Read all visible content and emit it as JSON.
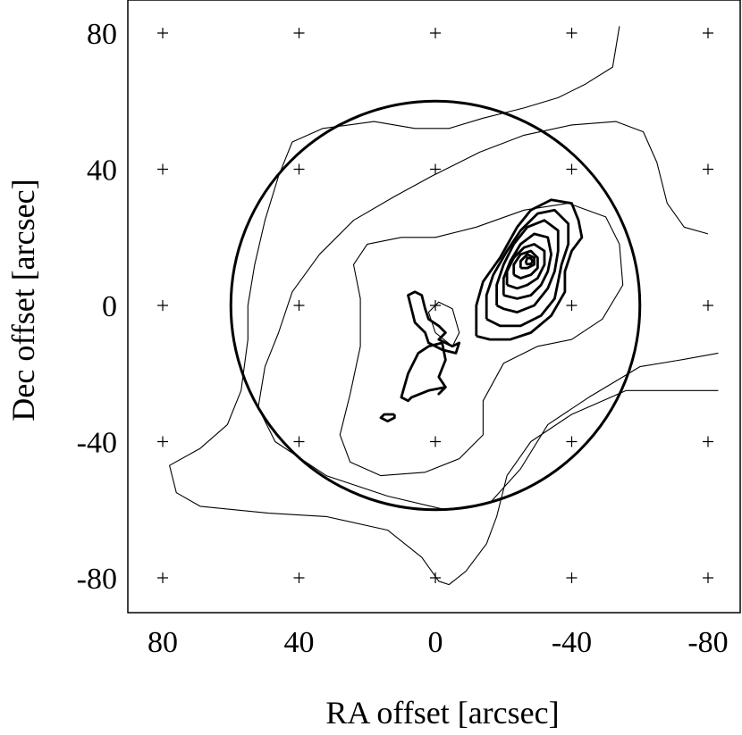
{
  "chart_data": {
    "type": "contour",
    "xlabel": "RA offset [arcsec]",
    "ylabel": "Dec offset [arcsec]",
    "xlim": [
      90,
      -90
    ],
    "ylim": [
      -90,
      90
    ],
    "x_reversed": true,
    "xticks": [
      80,
      40,
      0,
      -40,
      -80
    ],
    "yticks": [
      80,
      40,
      0,
      -40,
      -80
    ],
    "xtick_labels": [
      "80",
      "40",
      "0",
      "-40",
      "-80"
    ],
    "ytick_labels": [
      "80",
      "40",
      "0",
      "-40",
      "-80"
    ],
    "grid_markers": "plus marks at every tick intersection",
    "beam_circle": {
      "center": [
        0,
        0
      ],
      "radius": 60
    },
    "thin_contours": [
      {
        "name": "outer",
        "points": [
          [
            -54,
            82
          ],
          [
            -52,
            70
          ],
          [
            -44,
            65
          ],
          [
            -36,
            61
          ],
          [
            -26,
            58
          ],
          [
            -14,
            55
          ],
          [
            -4,
            52
          ],
          [
            6,
            52
          ],
          [
            18,
            54
          ],
          [
            33,
            52
          ],
          [
            42,
            48
          ],
          [
            46,
            38
          ],
          [
            50,
            25
          ],
          [
            53,
            12
          ],
          [
            55,
            0
          ],
          [
            55,
            -10
          ],
          [
            57,
            -25
          ],
          [
            61,
            -35
          ],
          [
            69,
            -42
          ],
          [
            78,
            -47
          ],
          [
            76,
            -55
          ],
          [
            69,
            -59
          ],
          [
            49,
            -61
          ],
          [
            32,
            -62
          ],
          [
            14,
            -66
          ],
          [
            4,
            -74
          ],
          [
            -1,
            -81
          ],
          [
            -4,
            -82
          ],
          [
            -9,
            -78
          ],
          [
            -15,
            -70
          ],
          [
            -18,
            -62
          ],
          [
            -21,
            -50
          ],
          [
            -28,
            -40
          ],
          [
            -40,
            -32
          ],
          [
            -56,
            -25
          ],
          [
            -83,
            -25
          ]
        ]
      },
      {
        "name": "middle",
        "points": [
          [
            -83,
            -14
          ],
          [
            -72,
            -16
          ],
          [
            -60,
            -18
          ],
          [
            -45,
            -27
          ],
          [
            -33,
            -35
          ],
          [
            -25,
            -48
          ],
          [
            -16,
            -58
          ],
          [
            -3,
            -60
          ],
          [
            14,
            -56
          ],
          [
            32,
            -50
          ],
          [
            47,
            -40
          ],
          [
            52,
            -30
          ],
          [
            50,
            -18
          ],
          [
            46,
            -8
          ],
          [
            42,
            4
          ],
          [
            34,
            15
          ],
          [
            24,
            25
          ],
          [
            12,
            32
          ],
          [
            1,
            38
          ],
          [
            -13,
            45
          ],
          [
            -26,
            50
          ],
          [
            -40,
            53
          ],
          [
            -53,
            54
          ],
          [
            -61,
            51
          ],
          [
            -65,
            42
          ],
          [
            -68,
            30
          ],
          [
            -73,
            23
          ],
          [
            -80,
            21
          ]
        ]
      },
      {
        "name": "inner",
        "points": [
          [
            -14,
            -38
          ],
          [
            -7,
            -45
          ],
          [
            3,
            -49
          ],
          [
            16,
            -50
          ],
          [
            25,
            -46
          ],
          [
            28,
            -38
          ],
          [
            25,
            -26
          ],
          [
            22,
            -12
          ],
          [
            22,
            2
          ],
          [
            24,
            12
          ],
          [
            20,
            18
          ],
          [
            10,
            20
          ],
          [
            0,
            20
          ],
          [
            -12,
            23
          ],
          [
            -26,
            28
          ],
          [
            -39,
            30
          ],
          [
            -50,
            26
          ],
          [
            -54,
            18
          ],
          [
            -55,
            6
          ],
          [
            -49,
            -4
          ],
          [
            -40,
            -10
          ],
          [
            -30,
            -12
          ],
          [
            -20,
            -17
          ],
          [
            -14,
            -28
          ],
          [
            -14,
            -38
          ]
        ]
      },
      {
        "name": "small-inner",
        "points": [
          [
            2,
            -2
          ],
          [
            0,
            -8
          ],
          [
            -5,
            -12
          ],
          [
            -7,
            -8
          ],
          [
            -5,
            -1
          ],
          [
            -1,
            1
          ],
          [
            2,
            -2
          ]
        ]
      }
    ],
    "thick_contours": [
      {
        "name": "peak-level-1",
        "points": [
          [
            -12,
            -9
          ],
          [
            -12,
            0
          ],
          [
            -14,
            7
          ],
          [
            -19,
            14
          ],
          [
            -24,
            23
          ],
          [
            -28,
            28
          ],
          [
            -34,
            31
          ],
          [
            -40,
            30
          ],
          [
            -42,
            25
          ],
          [
            -43,
            20
          ],
          [
            -40,
            16
          ],
          [
            -38,
            10
          ],
          [
            -38,
            4
          ],
          [
            -34,
            -3
          ],
          [
            -28,
            -8
          ],
          [
            -22,
            -10
          ],
          [
            -16,
            -10
          ],
          [
            -12,
            -9
          ]
        ]
      },
      {
        "name": "peak-level-2",
        "points": [
          [
            -15,
            -4
          ],
          [
            -15,
            3
          ],
          [
            -17,
            9
          ],
          [
            -21,
            16
          ],
          [
            -25,
            22
          ],
          [
            -30,
            27
          ],
          [
            -35,
            28
          ],
          [
            -39,
            24
          ],
          [
            -39,
            18
          ],
          [
            -37,
            12
          ],
          [
            -36,
            7
          ],
          [
            -35,
            2
          ],
          [
            -31,
            -3
          ],
          [
            -25,
            -6
          ],
          [
            -19,
            -6
          ],
          [
            -15,
            -4
          ]
        ]
      },
      {
        "name": "peak-level-3",
        "points": [
          [
            -18,
            0
          ],
          [
            -18,
            6
          ],
          [
            -20,
            12
          ],
          [
            -23,
            18
          ],
          [
            -27,
            23
          ],
          [
            -32,
            25
          ],
          [
            -36,
            22
          ],
          [
            -36,
            16
          ],
          [
            -35,
            10
          ],
          [
            -33,
            5
          ],
          [
            -29,
            0
          ],
          [
            -24,
            -2
          ],
          [
            -20,
            -1
          ],
          [
            -18,
            0
          ]
        ]
      },
      {
        "name": "peak-level-4",
        "points": [
          [
            -20,
            3
          ],
          [
            -20,
            8
          ],
          [
            -22,
            13
          ],
          [
            -25,
            18
          ],
          [
            -29,
            21
          ],
          [
            -33,
            20
          ],
          [
            -34,
            15
          ],
          [
            -33,
            10
          ],
          [
            -31,
            6
          ],
          [
            -28,
            3
          ],
          [
            -24,
            2
          ],
          [
            -20,
            3
          ]
        ]
      },
      {
        "name": "peak-level-5",
        "points": [
          [
            -21,
            6
          ],
          [
            -21,
            10
          ],
          [
            -23,
            14
          ],
          [
            -26,
            17
          ],
          [
            -29,
            18
          ],
          [
            -32,
            16
          ],
          [
            -32,
            12
          ],
          [
            -30,
            8
          ],
          [
            -27,
            6
          ],
          [
            -24,
            5
          ],
          [
            -21,
            6
          ]
        ]
      },
      {
        "name": "peak-level-6",
        "points": [
          [
            -23,
            9
          ],
          [
            -23,
            12
          ],
          [
            -25,
            15
          ],
          [
            -28,
            16
          ],
          [
            -30,
            14
          ],
          [
            -30,
            11
          ],
          [
            -28,
            9
          ],
          [
            -25,
            8
          ],
          [
            -23,
            9
          ]
        ]
      },
      {
        "name": "peak-level-7",
        "points": [
          [
            -25,
            11
          ],
          [
            -25,
            13
          ],
          [
            -27,
            15
          ],
          [
            -29,
            14
          ],
          [
            -29,
            12
          ],
          [
            -27,
            11
          ],
          [
            -25,
            11
          ]
        ]
      },
      {
        "name": "peak-level-8",
        "points": [
          [
            -26.5,
            12.5
          ],
          [
            -27,
            14
          ],
          [
            -28,
            13.8
          ],
          [
            -28.6,
            13
          ],
          [
            -28,
            12.2
          ],
          [
            -27,
            12.1
          ],
          [
            -26.5,
            12.5
          ]
        ]
      },
      {
        "name": "central-blob",
        "points": [
          [
            7,
            -1
          ],
          [
            6,
            -5
          ],
          [
            3,
            -8
          ],
          [
            2,
            -11
          ],
          [
            -2,
            -13
          ],
          [
            -6,
            -14
          ],
          [
            -7,
            -11
          ],
          [
            -5,
            -12
          ],
          [
            -1,
            -10
          ],
          [
            -3,
            -8
          ],
          [
            -1,
            -6
          ],
          [
            2,
            -4
          ],
          [
            3,
            -1
          ],
          [
            4,
            3
          ],
          [
            6,
            4
          ],
          [
            8,
            3
          ],
          [
            7,
            -1
          ]
        ]
      },
      {
        "name": "south-spur",
        "points": [
          [
            -2,
            -11
          ],
          [
            -3,
            -16
          ],
          [
            -1,
            -21
          ],
          [
            -3,
            -24
          ],
          [
            -1,
            -26
          ],
          [
            -3,
            -24
          ],
          [
            2,
            -25
          ],
          [
            7,
            -27
          ],
          [
            8,
            -28
          ],
          [
            10,
            -27
          ],
          [
            8,
            -20
          ],
          [
            5,
            -14
          ],
          [
            2,
            -12
          ],
          [
            -2,
            -11
          ]
        ]
      },
      {
        "name": "south-dot",
        "points": [
          [
            12,
            -32
          ],
          [
            15,
            -32
          ],
          [
            16,
            -33
          ],
          [
            14,
            -34
          ],
          [
            12,
            -33
          ],
          [
            12,
            -32
          ]
        ]
      }
    ]
  }
}
